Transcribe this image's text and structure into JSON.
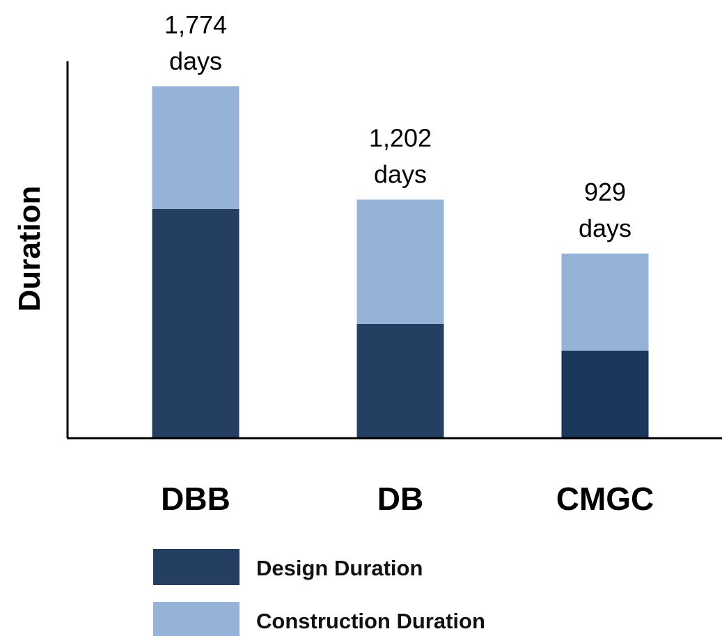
{
  "chart_data": {
    "type": "bar",
    "stacked": true,
    "ylabel": "Duration",
    "categories": [
      "DBB",
      "DB",
      "CMGC"
    ],
    "totals": [
      1774,
      1202,
      929
    ],
    "total_labels": [
      [
        "1,774",
        "days"
      ],
      [
        "1,202",
        "days"
      ],
      [
        "929",
        "days"
      ]
    ],
    "series": [
      {
        "name": "Design Duration",
        "values": [
          1155,
          574,
          438
        ],
        "color": "#243f62"
      },
      {
        "name": "Construction Duration",
        "values": [
          619,
          628,
          491
        ],
        "color": "#95b3d7"
      }
    ],
    "last_design_color": "#1a365a",
    "ylim": [
      0,
      2000
    ],
    "grid": false,
    "legend_position": "bottom-left"
  }
}
